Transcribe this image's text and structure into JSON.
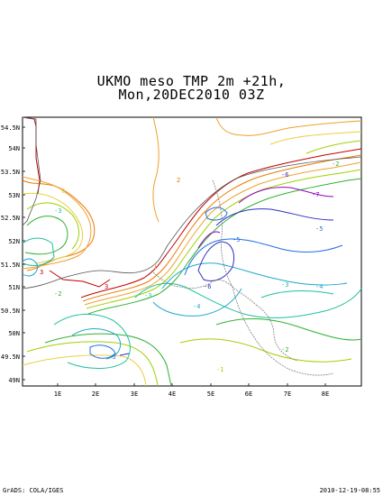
{
  "header": {
    "title_line1": "UKMO meso TMP 2m +21h,",
    "title_line2": "Mon,20DEC2010 03Z"
  },
  "axes": {
    "lat_labels": [
      "54.5N",
      "54N",
      "53.5N",
      "53N",
      "52.5N",
      "52N",
      "51.5N",
      "51N",
      "50.5N",
      "50N",
      "49.5N",
      "49N"
    ],
    "lon_labels": [
      "1E",
      "2E",
      "3E",
      "4E",
      "5E",
      "6E",
      "7E",
      "8E"
    ]
  },
  "contour_labels": [
    "-7",
    "-6",
    "-6",
    "-5",
    "-5",
    "-5",
    "-4",
    "-4",
    "-3",
    "-3",
    "-3",
    "-2",
    "-2",
    "-2",
    "-1",
    "0",
    "1",
    "2",
    "3",
    "3"
  ],
  "colors": {
    "frame": "#000000",
    "coast": "#555555",
    "border": "#808080",
    "c_plus3": "#c00000",
    "c_plus2": "#e87a00",
    "c_plus1": "#f0a030",
    "c_zero": "#e8d040",
    "c_minus1": "#a0d000",
    "c_minus2": "#30b030",
    "c_minus3": "#20c0a0",
    "c_minus4": "#20a8d0",
    "c_minus5": "#2070e0",
    "c_minus6": "#3030c0",
    "c_minus7": "#9000c0"
  },
  "footer": {
    "left": "GrADS: COLA/IGES",
    "right": "2010-12-19-08:55"
  }
}
